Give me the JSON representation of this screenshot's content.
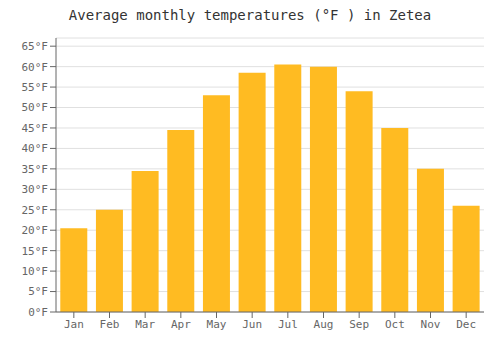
{
  "chart_data": {
    "type": "bar",
    "title": "Average monthly temperatures (°F ) in Zetea",
    "categories": [
      "Jan",
      "Feb",
      "Mar",
      "Apr",
      "May",
      "Jun",
      "Jul",
      "Aug",
      "Sep",
      "Oct",
      "Nov",
      "Dec"
    ],
    "values": [
      20.5,
      25.0,
      34.5,
      44.5,
      53.0,
      58.5,
      60.5,
      60.0,
      54.0,
      45.0,
      35.0,
      26.0
    ],
    "color": "#FFBB22",
    "ylim": [
      0,
      67
    ],
    "yticks": [
      {
        "value": 0,
        "label": "0°F"
      },
      {
        "value": 5,
        "label": "5°F"
      },
      {
        "value": 10,
        "label": "10°F"
      },
      {
        "value": 15,
        "label": "15°F"
      },
      {
        "value": 20,
        "label": "20°F"
      },
      {
        "value": 25,
        "label": "25°F"
      },
      {
        "value": 30,
        "label": "30°F"
      },
      {
        "value": 35,
        "label": "35°F"
      },
      {
        "value": 40,
        "label": "40°F"
      },
      {
        "value": 45,
        "label": "45°F"
      },
      {
        "value": 50,
        "label": "50°F"
      },
      {
        "value": 55,
        "label": "55°F"
      },
      {
        "value": 60,
        "label": "60°F"
      },
      {
        "value": 65,
        "label": "65°F"
      }
    ],
    "grid": true
  }
}
